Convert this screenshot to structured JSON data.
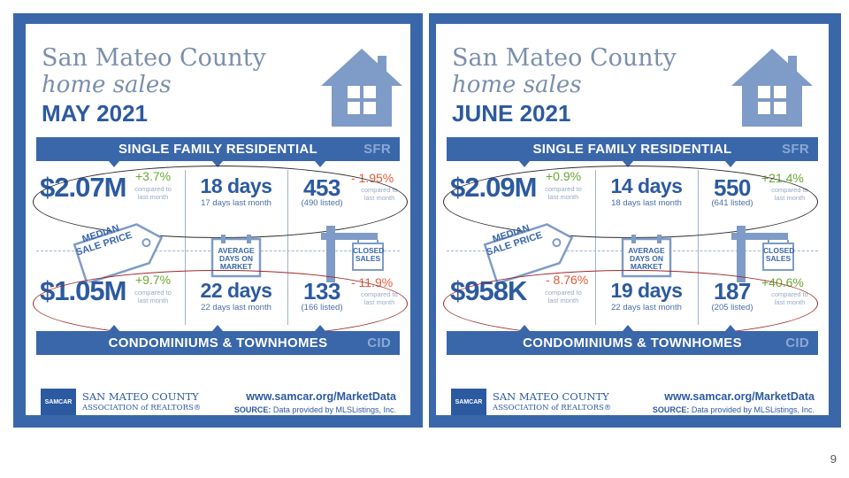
{
  "slide": {
    "page_number": "9"
  },
  "panels": [
    {
      "title_line1": "San Mateo County",
      "title_line2": "home sales",
      "title_month": "MAY 2021",
      "sfr_band": "SINGLE FAMILY RESIDENTIAL",
      "sfr_tag": "SFR",
      "cid_band": "CONDOMINIUMS & TOWNHOMES",
      "cid_tag": "CID",
      "sfr": {
        "price": "$2.07M",
        "price_change": "+3.7%",
        "price_change_dir": "up",
        "days": "18 days",
        "days_last": "17 days last month",
        "sales": "453",
        "listed": "(490 listed)",
        "sales_change": "- 1.95%",
        "sales_change_dir": "down"
      },
      "cid": {
        "price": "$1.05M",
        "price_change": "+9.7%",
        "price_change_dir": "up",
        "days": "22 days",
        "days_last": "22 days last month",
        "sales": "133",
        "listed": "(166 listed)",
        "sales_change": "- 11.9%",
        "sales_change_dir": "down"
      },
      "compared_line1": "compared to",
      "compared_line2": "last month",
      "icon_median": "MEDIAN SALE PRICE",
      "icon_days": "AVERAGE DAYS ON MARKET",
      "icon_sales": "CLOSED SALES",
      "logo_text": "SAMCAR",
      "assoc_line1": "SAN MATEO COUNTY",
      "assoc_line2": "ASSOCIATION of REALTORS®",
      "url": "www.samcar.org/MarketData",
      "source_label": "SOURCE:",
      "source_text": "Data provided by MLSListings, Inc."
    },
    {
      "title_line1": "San Mateo County",
      "title_line2": "home sales",
      "title_month": "JUNE 2021",
      "sfr_band": "SINGLE FAMILY RESIDENTIAL",
      "sfr_tag": "SFR",
      "cid_band": "CONDOMINIUMS & TOWNHOMES",
      "cid_tag": "CID",
      "sfr": {
        "price": "$2.09M",
        "price_change": "+0.9%",
        "price_change_dir": "up",
        "days": "14 days",
        "days_last": "18 days last month",
        "sales": "550",
        "listed": "(641 listed)",
        "sales_change": "+21.4%",
        "sales_change_dir": "up"
      },
      "cid": {
        "price": "$958K",
        "price_change": "- 8.76%",
        "price_change_dir": "down",
        "days": "19 days",
        "days_last": "22 days last month",
        "sales": "187",
        "listed": "(205 listed)",
        "sales_change": "+40.6%",
        "sales_change_dir": "up"
      },
      "compared_line1": "compared to",
      "compared_line2": "last month",
      "icon_median": "MEDIAN SALE PRICE",
      "icon_days": "AVERAGE DAYS ON MARKET",
      "icon_sales": "CLOSED SALES",
      "logo_text": "SAMCAR",
      "assoc_line1": "SAN MATEO COUNTY",
      "assoc_line2": "ASSOCIATION of REALTORS®",
      "url": "www.samcar.org/MarketData",
      "source_label": "SOURCE:",
      "source_text": "Data provided by MLSListings, Inc."
    }
  ],
  "colors": {
    "brand_blue": "#3a67aa",
    "text_blue": "#2c5aa0",
    "title_gray": "#7b8fab",
    "increase_green": "#6aa832",
    "decrease_red": "#e45a3a"
  }
}
